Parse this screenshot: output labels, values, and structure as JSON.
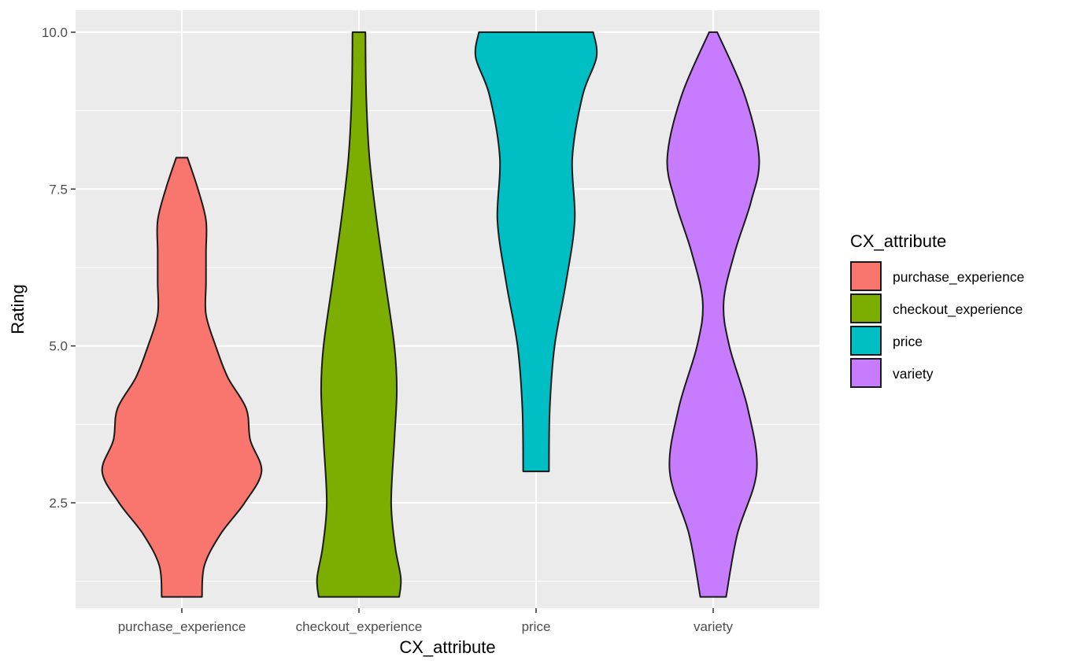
{
  "chart_data": {
    "type": "violin",
    "xlabel": "CX_attribute",
    "ylabel": "Rating",
    "ylim": [
      0.82,
      10.35
    ],
    "y_ticks": [
      2.5,
      5.0,
      7.5,
      10.0
    ],
    "y_tick_labels": [
      "2.5",
      "5.0",
      "7.5",
      "10.0"
    ],
    "grid": true,
    "legend": {
      "title": "CX_attribute",
      "position": "right"
    },
    "categories": [
      "purchase_experience",
      "checkout_experience",
      "price",
      "variety"
    ],
    "series": [
      {
        "name": "purchase_experience",
        "color": "#F8766D",
        "range": [
          1,
          8
        ],
        "density": [
          [
            1,
            0.25
          ],
          [
            1.5,
            0.28
          ],
          [
            2,
            0.48
          ],
          [
            2.5,
            0.78
          ],
          [
            3,
            0.99
          ],
          [
            3.5,
            0.85
          ],
          [
            4,
            0.8
          ],
          [
            4.5,
            0.57
          ],
          [
            5,
            0.42
          ],
          [
            5.5,
            0.3
          ],
          [
            6,
            0.3
          ],
          [
            6.5,
            0.3
          ],
          [
            7,
            0.3
          ],
          [
            7.5,
            0.2
          ],
          [
            8,
            0.07
          ]
        ]
      },
      {
        "name": "checkout_experience",
        "color": "#7CAE00",
        "range": [
          1,
          10
        ],
        "density": [
          [
            1,
            0.5
          ],
          [
            1.3,
            0.52
          ],
          [
            1.8,
            0.45
          ],
          [
            2.5,
            0.4
          ],
          [
            3.5,
            0.44
          ],
          [
            4.3,
            0.47
          ],
          [
            5,
            0.44
          ],
          [
            6,
            0.33
          ],
          [
            7,
            0.22
          ],
          [
            8,
            0.13
          ],
          [
            9,
            0.09
          ],
          [
            10,
            0.08
          ]
        ]
      },
      {
        "name": "price",
        "color": "#00BFC4",
        "range": [
          3,
          10
        ],
        "density": [
          [
            3,
            0.16
          ],
          [
            4,
            0.17
          ],
          [
            5,
            0.23
          ],
          [
            6,
            0.37
          ],
          [
            7,
            0.48
          ],
          [
            8,
            0.45
          ],
          [
            9,
            0.58
          ],
          [
            9.6,
            0.75
          ],
          [
            10,
            0.71
          ]
        ]
      },
      {
        "name": "variety",
        "color": "#C77CFF",
        "range": [
          1,
          10
        ],
        "density": [
          [
            1,
            0.16
          ],
          [
            2,
            0.3
          ],
          [
            3,
            0.54
          ],
          [
            4,
            0.43
          ],
          [
            5,
            0.2
          ],
          [
            5.7,
            0.13
          ],
          [
            6.5,
            0.27
          ],
          [
            7.3,
            0.47
          ],
          [
            8,
            0.57
          ],
          [
            9,
            0.39
          ],
          [
            10,
            0.05
          ]
        ]
      }
    ]
  }
}
